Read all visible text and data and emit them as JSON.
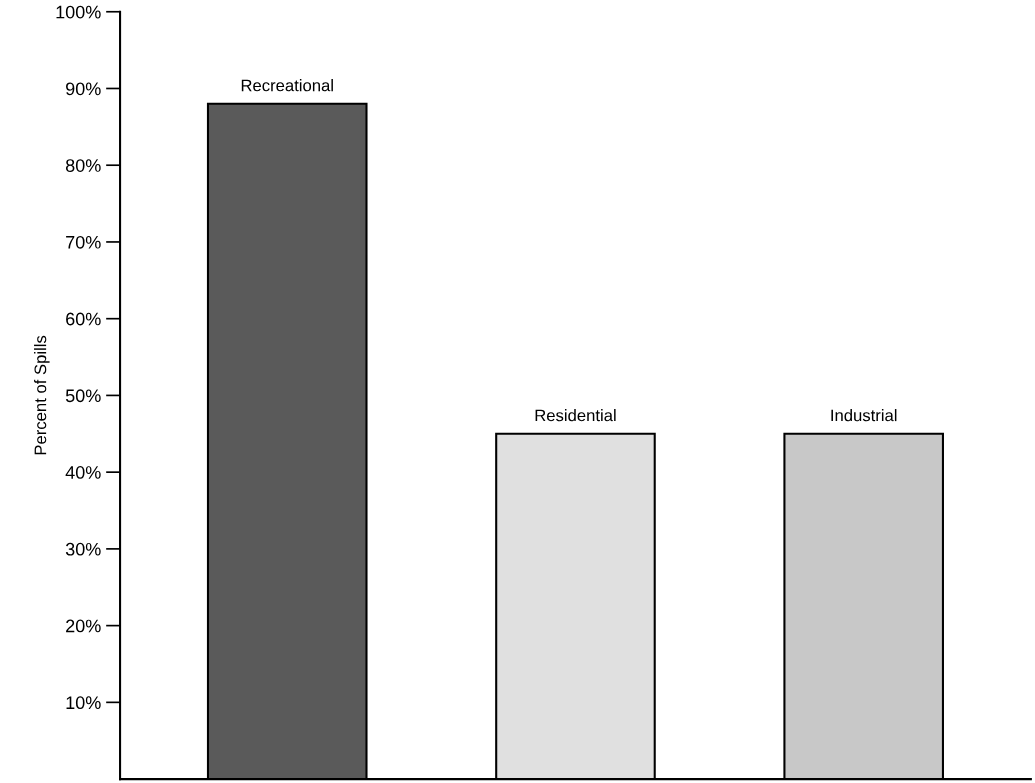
{
  "chart_data": {
    "type": "bar",
    "ylabel": "Percent of Spills",
    "categories": [
      "Recreational",
      "Residential",
      "Industrial"
    ],
    "values": [
      88,
      45,
      45
    ],
    "colors": [
      "#5a5a5a",
      "#e0e0e0",
      "#c8c8c8"
    ],
    "ylim": [
      0,
      100
    ],
    "yticks": [
      {
        "value": 10,
        "label": "10%"
      },
      {
        "value": 20,
        "label": "20%"
      },
      {
        "value": 30,
        "label": "30%"
      },
      {
        "value": 40,
        "label": "40%"
      },
      {
        "value": 50,
        "label": "50%"
      },
      {
        "value": 60,
        "label": "60%"
      },
      {
        "value": 70,
        "label": "70%"
      },
      {
        "value": 80,
        "label": "80%"
      },
      {
        "value": 90,
        "label": "90%"
      },
      {
        "value": 100,
        "label": "100%"
      }
    ],
    "tick_labels": "y",
    "grid": false,
    "legend": false
  }
}
